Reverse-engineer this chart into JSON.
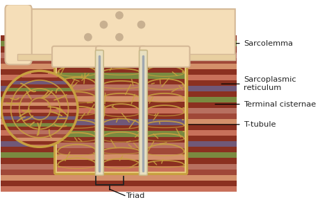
{
  "labels": {
    "sarcolemma": "Sarcolemma",
    "sarcoplasmic_reticulum": "Sarcoplasmic\nreticulum",
    "terminal_cisternae": "Terminal cisternae",
    "t_tubule": "T-tubule",
    "triad": "Triad"
  },
  "colors": {
    "sarcolemma_fill": "#f5deb8",
    "sarcolemma_edge": "#d4b896",
    "sarcolemma_thick": "#e8cfa0",
    "muscle_1": "#c8705a",
    "muscle_2": "#8b3020",
    "muscle_3": "#d4906a",
    "muscle_4": "#a04838",
    "muscle_5": "#b87060",
    "muscle_green": "#7a8a40",
    "muscle_purple": "#705878",
    "sr_fill": "#e8c878",
    "sr_edge": "#c8a040",
    "sr_thick": "#d4b060",
    "t_tube_fill": "#e8dfc0",
    "t_tube_edge": "#c8b888",
    "t_tube_gray": "#a0a8b0",
    "background": "#ffffff",
    "text_color": "#222222"
  },
  "figure_width": 4.74,
  "figure_height": 3.02,
  "dpi": 100
}
